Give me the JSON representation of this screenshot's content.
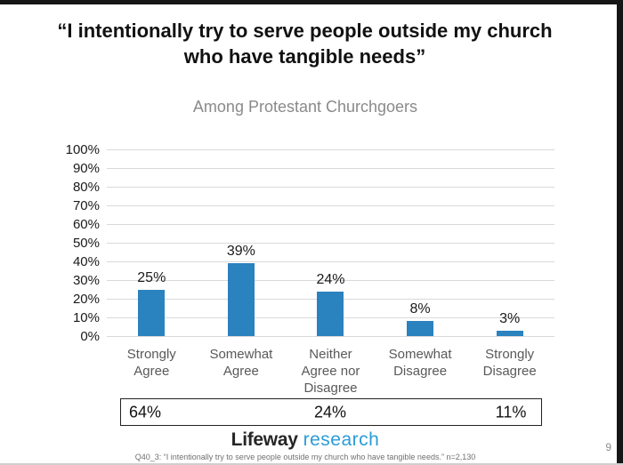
{
  "page": {
    "title_line1": "“I intentionally try to serve people outside my church",
    "title_line2": "who have tangible needs”",
    "footer": "Q40_3: “I intentionally try to serve people outside my church who have tangible needs.”  n=2,130",
    "page_number": "9"
  },
  "logo": {
    "word1": "Lifeway",
    "word2": "research"
  },
  "colors": {
    "bar": "#2a82bf",
    "grid": "#d9d9d9",
    "edge": "#161616",
    "category_label": "#595959",
    "subtitle_gray": "#8a8a8a",
    "logo_blue": "#2b9cd8",
    "logo_dark": "#262626",
    "footer_gray": "#707070"
  },
  "chart_data": {
    "type": "bar",
    "title": "Among Protestant Churchgoers",
    "categories": [
      "Strongly Agree",
      "Somewhat Agree",
      "Neither Agree nor Disagree",
      "Somewhat Disagree",
      "Strongly Disagree"
    ],
    "values": [
      25,
      39,
      24,
      8,
      3
    ],
    "value_labels": [
      "25%",
      "39%",
      "24%",
      "8%",
      "3%"
    ],
    "xlabel": "",
    "ylabel": "",
    "ylim": [
      0,
      100
    ],
    "ytick_step": 10,
    "ytick_labels": [
      "0%",
      "10%",
      "20%",
      "30%",
      "40%",
      "50%",
      "60%",
      "70%",
      "80%",
      "90%",
      "100%"
    ],
    "grid": true,
    "legend": false,
    "bar_color": "#2a82bf",
    "summary_row": {
      "agree_total": "64%",
      "neither": "24%",
      "disagree_total": "11%"
    }
  }
}
